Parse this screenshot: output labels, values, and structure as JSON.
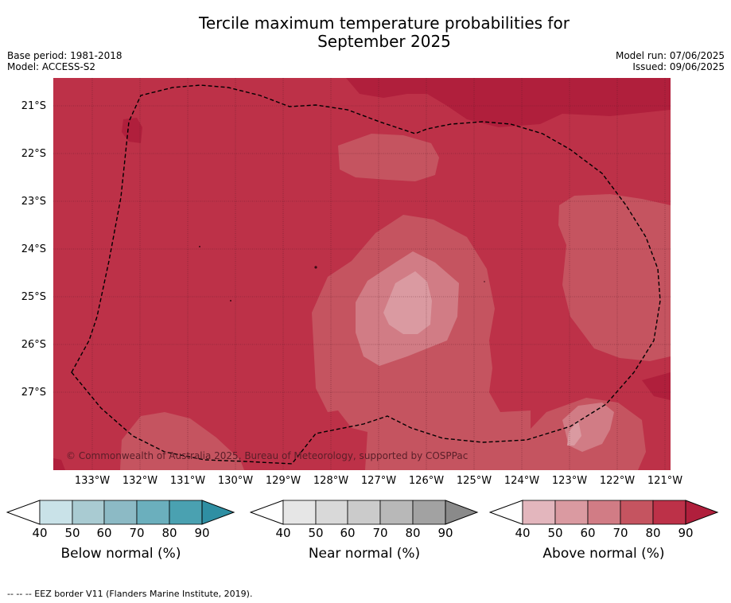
{
  "header": {
    "title_line1": "Tercile maximum temperature probabilities for",
    "title_line2": "September 2025",
    "base_period": "Base period: 1981-2018",
    "model": "Model: ACCESS-S2",
    "model_run": "Model run: 07/06/2025",
    "issued": "Issued: 09/06/2025"
  },
  "map": {
    "lat_labels": [
      "21°S",
      "22°S",
      "23°S",
      "24°S",
      "25°S",
      "26°S",
      "27°S"
    ],
    "lon_labels": [
      "133°W",
      "132°W",
      "131°W",
      "130°W",
      "129°W",
      "128°W",
      "127°W",
      "126°W",
      "125°W",
      "124°W",
      "123°W",
      "122°W",
      "121°W"
    ],
    "copyright": "© Commonwealth of Australia 2025, Bureau of Meteorology, supported by COSPPac",
    "colors": {
      "above_80_90": "#bd3148",
      "above_90": "#b01f3c",
      "above_70_80": "#c55460",
      "above_60_70": "#d17c85",
      "above_50_60": "#da9aa1",
      "eez_border": "#000000"
    }
  },
  "colorbars": [
    {
      "label": "Below normal (%)",
      "ticks": [
        "40",
        "50",
        "60",
        "70",
        "80",
        "90"
      ],
      "colors": [
        "#c9e2e8",
        "#a9cbd2",
        "#8cbac5",
        "#6bafbd",
        "#4aa1b1",
        "#2f8fa3"
      ]
    },
    {
      "label": "Near normal (%)",
      "ticks": [
        "40",
        "50",
        "60",
        "70",
        "80",
        "90"
      ],
      "colors": [
        "#e6e6e6",
        "#d9d9d9",
        "#cbcbcb",
        "#b8b8b8",
        "#a2a2a2",
        "#8a8a8a"
      ]
    },
    {
      "label": "Above normal (%)",
      "ticks": [
        "40",
        "50",
        "60",
        "70",
        "80",
        "90"
      ],
      "colors": [
        "#e3b6bd",
        "#da9aa1",
        "#d17c85",
        "#c55460",
        "#bd3148",
        "#b01f3c"
      ]
    }
  ],
  "footer": {
    "legend_text": "--  --  -- EEZ border V11 (Flanders Marine Institute, 2019)."
  }
}
